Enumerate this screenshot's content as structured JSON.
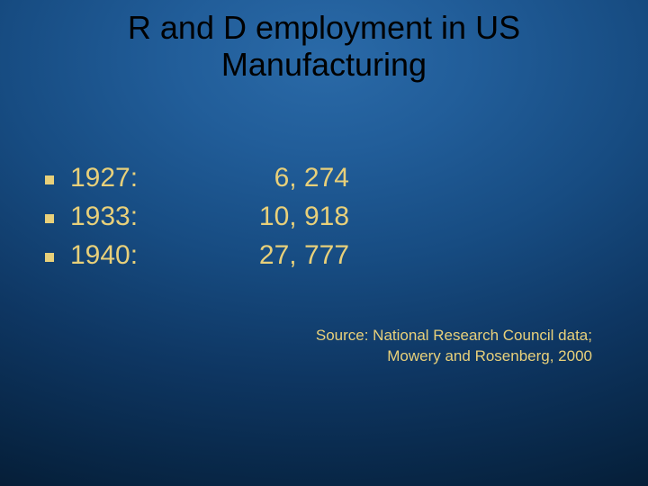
{
  "title_line1": "R and D employment in US",
  "title_line2": "Manufacturing",
  "rows": [
    {
      "year": "1927:",
      "value": "6, 274"
    },
    {
      "year": "1933:",
      "value": "10, 918"
    },
    {
      "year": "1940:",
      "value": "27, 777"
    }
  ],
  "source_line1": "Source:  National Research Council data;",
  "source_line2": "Mowery and Rosenberg, 2000",
  "colors": {
    "text_accent": "#e8d07a",
    "title_color": "#000000",
    "bg_gradient_inner": "#2a6aa8",
    "bg_gradient_outer": "#031427"
  },
  "fonts": {
    "title_family": "Arial",
    "body_family": "Verdana",
    "title_size_pt": 28,
    "body_size_pt": 24,
    "source_size_pt": 13
  }
}
